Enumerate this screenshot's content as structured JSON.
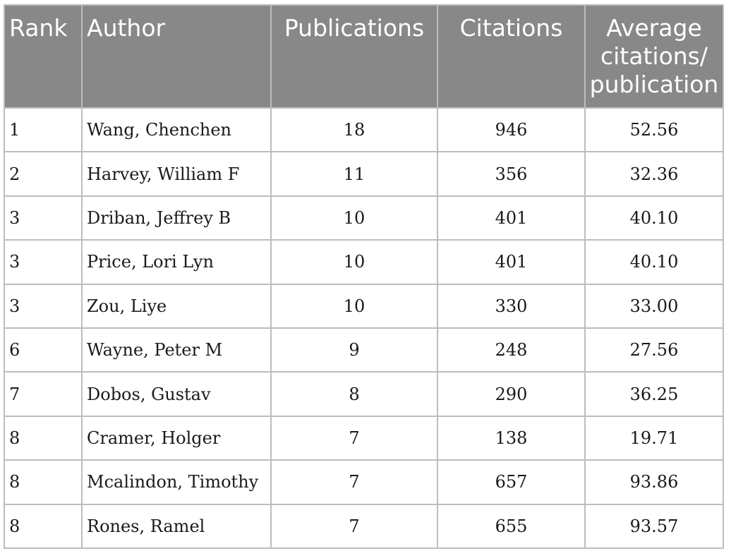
{
  "table": {
    "headers": {
      "rank": "Rank",
      "author": "Author",
      "publications": "Publications",
      "citations": "Citations",
      "average_line1": "Average",
      "average_line2": "citations/",
      "average_line3": "publication"
    },
    "rows": [
      {
        "rank": "1",
        "author": "Wang, Chenchen",
        "publications": "18",
        "citations": "946",
        "average": "52.56"
      },
      {
        "rank": "2",
        "author": "Harvey, William F",
        "publications": "11",
        "citations": "356",
        "average": "32.36"
      },
      {
        "rank": "3",
        "author": "Driban, Jeffrey B",
        "publications": "10",
        "citations": "401",
        "average": "40.10"
      },
      {
        "rank": "3",
        "author": "Price, Lori Lyn",
        "publications": "10",
        "citations": "401",
        "average": "40.10"
      },
      {
        "rank": "3",
        "author": "Zou, Liye",
        "publications": "10",
        "citations": "330",
        "average": "33.00"
      },
      {
        "rank": "6",
        "author": "Wayne, Peter M",
        "publications": "9",
        "citations": "248",
        "average": "27.56"
      },
      {
        "rank": "7",
        "author": "Dobos, Gustav",
        "publications": "8",
        "citations": "290",
        "average": "36.25"
      },
      {
        "rank": "8",
        "author": "Cramer, Holger",
        "publications": "7",
        "citations": "138",
        "average": "19.71"
      },
      {
        "rank": "8",
        "author": "Mcalindon, Timothy",
        "publications": "7",
        "citations": "657",
        "average": "93.86"
      },
      {
        "rank": "8",
        "author": "Rones, Ramel",
        "publications": "7",
        "citations": "655",
        "average": "93.57"
      }
    ]
  },
  "colors": {
    "header_background": "#888888",
    "header_text": "#ffffff",
    "grid_lines": "#bdbdbd",
    "body_text": "#1a1a1a"
  }
}
